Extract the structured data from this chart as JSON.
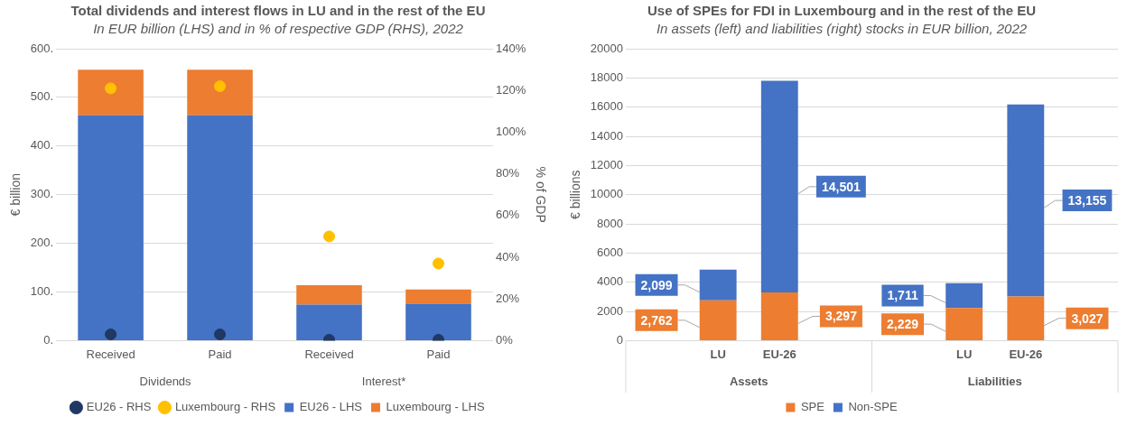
{
  "chart_data": [
    {
      "type": "bar",
      "title": "Total dividends and interest flows in LU and in the rest of the EU",
      "subtitle": "In EUR billion (LHS) and in % of respective GDP (RHS), 2022",
      "ylabel": "€ billion",
      "y2label": "% of GDP",
      "categories": [
        "Received",
        "Paid",
        "Received",
        "Paid"
      ],
      "annotations": [
        "Dividends",
        "Interest*"
      ],
      "stacked": true,
      "grid": "y",
      "legend": "bottom",
      "marker": "circle",
      "ylim": [
        0,
        600
      ],
      "yticks": [
        {
          "value": 0,
          "label": "0."
        },
        {
          "value": 100,
          "label": "100."
        },
        {
          "value": 200,
          "label": "200."
        },
        {
          "value": 300,
          "label": "300."
        },
        {
          "value": 400,
          "label": "400."
        },
        {
          "value": 500,
          "label": "500."
        },
        {
          "value": 600,
          "label": "600."
        }
      ],
      "y2lim": [
        0,
        140
      ],
      "y2ticks": [
        {
          "value": 0,
          "label": "0%"
        },
        {
          "value": 20,
          "label": "20%"
        },
        {
          "value": 40,
          "label": "40%"
        },
        {
          "value": 60,
          "label": "60%"
        },
        {
          "value": 80,
          "label": "80%"
        },
        {
          "value": 100,
          "label": "100%"
        },
        {
          "value": 120,
          "label": "120%"
        },
        {
          "value": 140,
          "label": "140%"
        }
      ],
      "series": [
        {
          "name": "EU26 - LHS",
          "color": "#4472c4",
          "values": [
            463,
            463,
            74,
            76
          ]
        },
        {
          "name": "Luxembourg - LHS",
          "color": "#ed7d31",
          "values": [
            94,
            94,
            40,
            29
          ]
        },
        {
          "name": "EU26 - RHS",
          "type": "scatter",
          "axis": "y2",
          "color": "#203864",
          "values": [
            3,
            3,
            0.4,
            0.4
          ]
        },
        {
          "name": "Luxembourg - RHS",
          "type": "scatter",
          "axis": "y2",
          "color": "#ffc000",
          "values": [
            121,
            122,
            50,
            37
          ]
        }
      ]
    },
    {
      "type": "bar",
      "title": "Use of SPEs for FDI in Luxembourg and in the rest of the EU",
      "subtitle": "In assets (left) and liabilities (right) stocks in EUR billion, 2022",
      "ylabel": "€ billions",
      "categories": [
        null,
        "LU",
        "EU-26",
        null,
        null,
        "LU",
        "EU-26",
        null
      ],
      "annotations": [
        "Assets",
        "Liabilities"
      ],
      "stacked": true,
      "grid": "y",
      "legend": "bottom",
      "ylim": [
        0,
        20000
      ],
      "yticks": [
        0,
        2000,
        4000,
        6000,
        8000,
        10000,
        12000,
        14000,
        16000,
        18000,
        20000
      ],
      "series": [
        {
          "name": "SPE",
          "color": "#ed7d31",
          "values": [
            null,
            2762,
            3297,
            null,
            null,
            2229,
            3027,
            null
          ],
          "value_labels": [
            null,
            "2,762",
            "3,297",
            null,
            null,
            "2,229",
            "3,027",
            null
          ]
        },
        {
          "name": "Non-SPE",
          "color": "#4472c4",
          "values": [
            null,
            2099,
            14501,
            null,
            null,
            1711,
            13155,
            null
          ],
          "value_labels": [
            null,
            "2,099",
            "14,501",
            null,
            null,
            "1,711",
            "13,155",
            null
          ]
        }
      ]
    }
  ]
}
